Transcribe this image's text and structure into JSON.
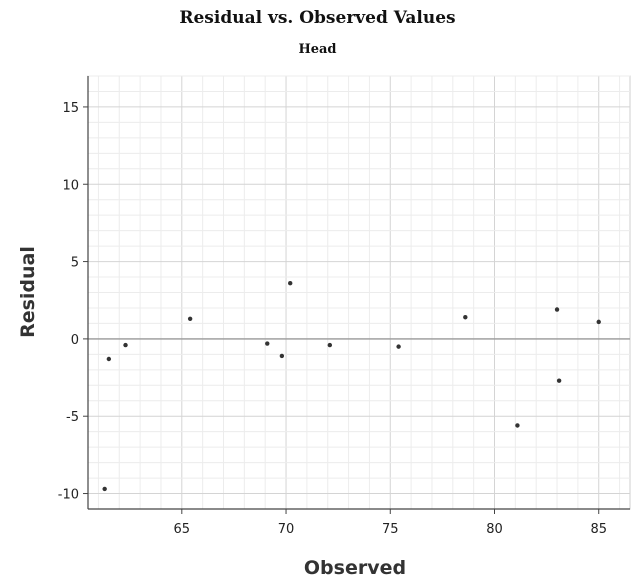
{
  "chart_data": {
    "type": "scatter",
    "title": "Residual vs. Observed Values",
    "subtitle": "Head",
    "xlabel": "Observed",
    "ylabel": "Residual",
    "xlim": [
      60.5,
      86.5
    ],
    "ylim": [
      -11,
      17
    ],
    "xticks": [
      65,
      70,
      75,
      80,
      85
    ],
    "yticks": [
      -10,
      -5,
      0,
      5,
      10,
      15
    ],
    "grid": true,
    "reference_line": 0,
    "points": [
      {
        "x": 61.3,
        "y": -9.7
      },
      {
        "x": 61.5,
        "y": -1.3
      },
      {
        "x": 62.3,
        "y": -0.4
      },
      {
        "x": 65.4,
        "y": 1.3
      },
      {
        "x": 69.1,
        "y": -0.3
      },
      {
        "x": 69.8,
        "y": -1.1
      },
      {
        "x": 70.2,
        "y": 3.6
      },
      {
        "x": 72.1,
        "y": -0.4
      },
      {
        "x": 75.4,
        "y": -0.5
      },
      {
        "x": 78.6,
        "y": 1.4
      },
      {
        "x": 81.1,
        "y": -5.6
      },
      {
        "x": 83.0,
        "y": 1.9
      },
      {
        "x": 83.1,
        "y": -2.7
      },
      {
        "x": 85.0,
        "y": 1.1
      }
    ]
  }
}
